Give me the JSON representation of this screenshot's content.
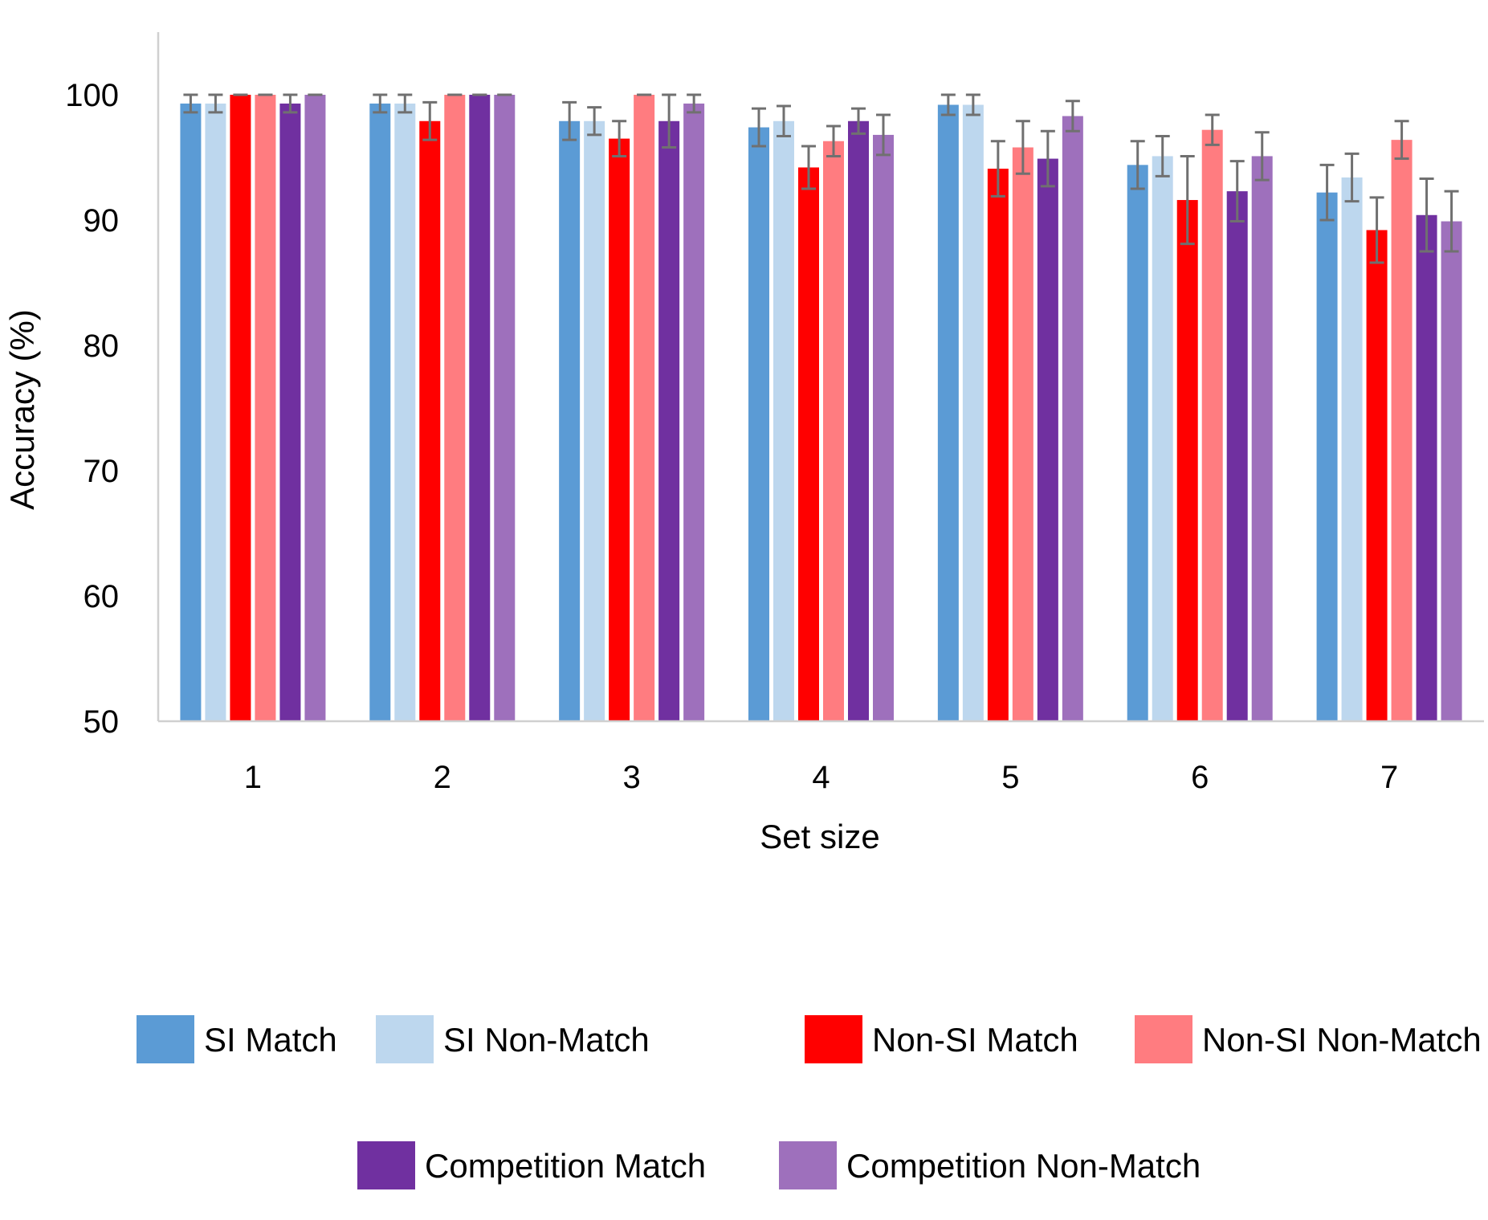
{
  "chart_data": {
    "type": "bar",
    "title": "",
    "xlabel": "Set size",
    "ylabel": "Accuracy (%)",
    "ylim": [
      50,
      105
    ],
    "yticks": [
      50,
      60,
      70,
      80,
      90,
      100
    ],
    "grid": false,
    "legend_position": "bottom",
    "categories": [
      "1",
      "2",
      "3",
      "4",
      "5",
      "6",
      "7"
    ],
    "series": [
      {
        "name": "SI Match",
        "color": "#5B9BD5",
        "values": [
          99.3,
          99.3,
          97.9,
          97.4,
          99.2,
          94.4,
          92.2
        ],
        "errors": [
          0.7,
          0.7,
          1.5,
          1.5,
          0.8,
          1.9,
          2.2
        ]
      },
      {
        "name": "SI Non-Match",
        "color": "#BDD7EE",
        "values": [
          99.3,
          99.3,
          97.9,
          97.9,
          99.2,
          95.1,
          93.4
        ],
        "errors": [
          0.7,
          0.7,
          1.1,
          1.2,
          0.8,
          1.6,
          1.9
        ]
      },
      {
        "name": "Non-SI Match",
        "color": "#FF0000",
        "values": [
          100,
          97.9,
          96.5,
          94.2,
          94.1,
          91.6,
          89.2
        ],
        "errors": [
          0,
          1.5,
          1.4,
          1.7,
          2.2,
          3.5,
          2.6
        ]
      },
      {
        "name": "Non-SI Non-Match",
        "color": "#FF7C80",
        "values": [
          100,
          100,
          100,
          96.3,
          95.8,
          97.2,
          96.4
        ],
        "errors": [
          0,
          0,
          0,
          1.2,
          2.1,
          1.2,
          1.5
        ]
      },
      {
        "name": "Competition Match",
        "color": "#7030A0",
        "values": [
          99.3,
          100,
          97.9,
          97.9,
          94.9,
          92.3,
          90.4
        ],
        "errors": [
          0.7,
          0,
          2.1,
          1.0,
          2.2,
          2.4,
          2.9
        ]
      },
      {
        "name": "Competition Non-Match",
        "color": "#9E70BC",
        "values": [
          100,
          100,
          99.3,
          96.8,
          98.3,
          95.1,
          89.9
        ],
        "errors": [
          0,
          0,
          0.7,
          1.6,
          1.2,
          1.9,
          2.4
        ]
      }
    ],
    "error_bar_color": "#707070"
  }
}
